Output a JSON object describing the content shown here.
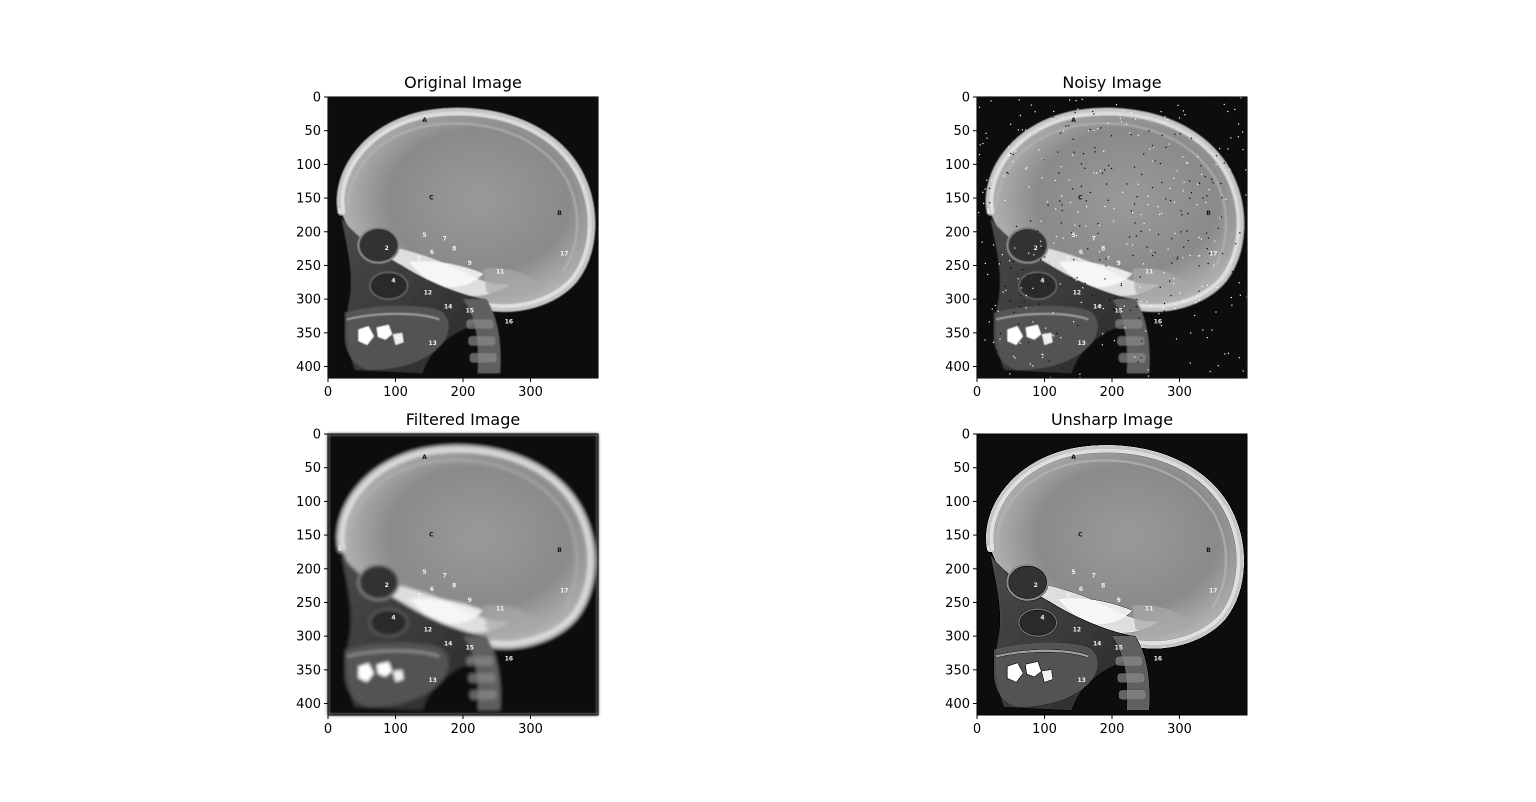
{
  "figure": {
    "background": "#ffffff",
    "axes_color": "#000000",
    "image_background": "#0c0c0c"
  },
  "chart_data": [
    {
      "type": "image",
      "title": "Original Image",
      "xticks": [
        0,
        100,
        200,
        300
      ],
      "yticks": [
        0,
        50,
        100,
        150,
        200,
        250,
        300,
        350,
        400
      ],
      "xlim": [
        0,
        400
      ],
      "ylim": [
        417,
        0
      ],
      "noise": "none",
      "markers": [
        {
          "label": "A",
          "x": 143,
          "y": 37
        },
        {
          "label": "C",
          "x": 153,
          "y": 152
        },
        {
          "label": "B",
          "x": 343,
          "y": 175
        },
        {
          "label": "1",
          "x": 17,
          "y": 172
        },
        {
          "label": "2",
          "x": 87,
          "y": 227
        },
        {
          "label": "3",
          "x": 135,
          "y": 243
        },
        {
          "label": "4",
          "x": 97,
          "y": 275
        },
        {
          "label": "5",
          "x": 143,
          "y": 208
        },
        {
          "label": "6",
          "x": 154,
          "y": 233
        },
        {
          "label": "7",
          "x": 173,
          "y": 213
        },
        {
          "label": "8",
          "x": 187,
          "y": 228
        },
        {
          "label": "9",
          "x": 210,
          "y": 249
        },
        {
          "label": "10",
          "x": 204,
          "y": 268
        },
        {
          "label": "11",
          "x": 255,
          "y": 262
        },
        {
          "label": "12",
          "x": 148,
          "y": 293
        },
        {
          "label": "13",
          "x": 155,
          "y": 368
        },
        {
          "label": "14",
          "x": 178,
          "y": 314
        },
        {
          "label": "15",
          "x": 210,
          "y": 320
        },
        {
          "label": "16",
          "x": 268,
          "y": 336
        },
        {
          "label": "17",
          "x": 350,
          "y": 235
        }
      ]
    },
    {
      "type": "image",
      "title": "Noisy Image",
      "xticks": [
        0,
        100,
        200,
        300
      ],
      "yticks": [
        0,
        50,
        100,
        150,
        200,
        250,
        300,
        350,
        400
      ],
      "xlim": [
        0,
        400
      ],
      "ylim": [
        417,
        0
      ],
      "noise": "salt-and-pepper",
      "markers": [
        {
          "label": "A",
          "x": 143,
          "y": 37
        },
        {
          "label": "C",
          "x": 153,
          "y": 152
        },
        {
          "label": "B",
          "x": 343,
          "y": 175
        },
        {
          "label": "1",
          "x": 17,
          "y": 172
        },
        {
          "label": "2",
          "x": 87,
          "y": 227
        },
        {
          "label": "3",
          "x": 135,
          "y": 243
        },
        {
          "label": "4",
          "x": 97,
          "y": 275
        },
        {
          "label": "5",
          "x": 143,
          "y": 208
        },
        {
          "label": "6",
          "x": 154,
          "y": 233
        },
        {
          "label": "7",
          "x": 173,
          "y": 213
        },
        {
          "label": "8",
          "x": 187,
          "y": 228
        },
        {
          "label": "9",
          "x": 210,
          "y": 249
        },
        {
          "label": "10",
          "x": 204,
          "y": 268
        },
        {
          "label": "11",
          "x": 255,
          "y": 262
        },
        {
          "label": "12",
          "x": 148,
          "y": 293
        },
        {
          "label": "13",
          "x": 155,
          "y": 368
        },
        {
          "label": "14",
          "x": 178,
          "y": 314
        },
        {
          "label": "15",
          "x": 210,
          "y": 320
        },
        {
          "label": "16",
          "x": 268,
          "y": 336
        },
        {
          "label": "17",
          "x": 350,
          "y": 235
        }
      ]
    },
    {
      "type": "image",
      "title": "Filtered Image",
      "xticks": [
        0,
        100,
        200,
        300
      ],
      "yticks": [
        0,
        50,
        100,
        150,
        200,
        250,
        300,
        350,
        400
      ],
      "xlim": [
        0,
        400
      ],
      "ylim": [
        417,
        0
      ],
      "noise": "blurred",
      "markers": [
        {
          "label": "A",
          "x": 143,
          "y": 37
        },
        {
          "label": "C",
          "x": 153,
          "y": 152
        },
        {
          "label": "B",
          "x": 343,
          "y": 175
        },
        {
          "label": "1",
          "x": 17,
          "y": 172
        },
        {
          "label": "2",
          "x": 87,
          "y": 227
        },
        {
          "label": "3",
          "x": 135,
          "y": 243
        },
        {
          "label": "4",
          "x": 97,
          "y": 275
        },
        {
          "label": "5",
          "x": 143,
          "y": 208
        },
        {
          "label": "6",
          "x": 154,
          "y": 233
        },
        {
          "label": "7",
          "x": 173,
          "y": 213
        },
        {
          "label": "8",
          "x": 187,
          "y": 228
        },
        {
          "label": "9",
          "x": 210,
          "y": 249
        },
        {
          "label": "10",
          "x": 204,
          "y": 268
        },
        {
          "label": "11",
          "x": 255,
          "y": 262
        },
        {
          "label": "12",
          "x": 148,
          "y": 293
        },
        {
          "label": "13",
          "x": 155,
          "y": 368
        },
        {
          "label": "14",
          "x": 178,
          "y": 314
        },
        {
          "label": "15",
          "x": 210,
          "y": 320
        },
        {
          "label": "16",
          "x": 268,
          "y": 336
        },
        {
          "label": "17",
          "x": 350,
          "y": 235
        }
      ]
    },
    {
      "type": "image",
      "title": "Unsharp Image",
      "xticks": [
        0,
        100,
        200,
        300
      ],
      "yticks": [
        0,
        50,
        100,
        150,
        200,
        250,
        300,
        350,
        400
      ],
      "xlim": [
        0,
        400
      ],
      "ylim": [
        417,
        0
      ],
      "noise": "sharpened",
      "markers": [
        {
          "label": "A",
          "x": 143,
          "y": 37
        },
        {
          "label": "C",
          "x": 153,
          "y": 152
        },
        {
          "label": "B",
          "x": 343,
          "y": 175
        },
        {
          "label": "1",
          "x": 17,
          "y": 172
        },
        {
          "label": "2",
          "x": 87,
          "y": 227
        },
        {
          "label": "3",
          "x": 135,
          "y": 243
        },
        {
          "label": "4",
          "x": 97,
          "y": 275
        },
        {
          "label": "5",
          "x": 143,
          "y": 208
        },
        {
          "label": "6",
          "x": 154,
          "y": 233
        },
        {
          "label": "7",
          "x": 173,
          "y": 213
        },
        {
          "label": "8",
          "x": 187,
          "y": 228
        },
        {
          "label": "9",
          "x": 210,
          "y": 249
        },
        {
          "label": "10",
          "x": 204,
          "y": 268
        },
        {
          "label": "11",
          "x": 255,
          "y": 262
        },
        {
          "label": "12",
          "x": 148,
          "y": 293
        },
        {
          "label": "13",
          "x": 155,
          "y": 368
        },
        {
          "label": "14",
          "x": 178,
          "y": 314
        },
        {
          "label": "15",
          "x": 210,
          "y": 320
        },
        {
          "label": "16",
          "x": 268,
          "y": 336
        },
        {
          "label": "17",
          "x": 350,
          "y": 235
        }
      ]
    }
  ]
}
